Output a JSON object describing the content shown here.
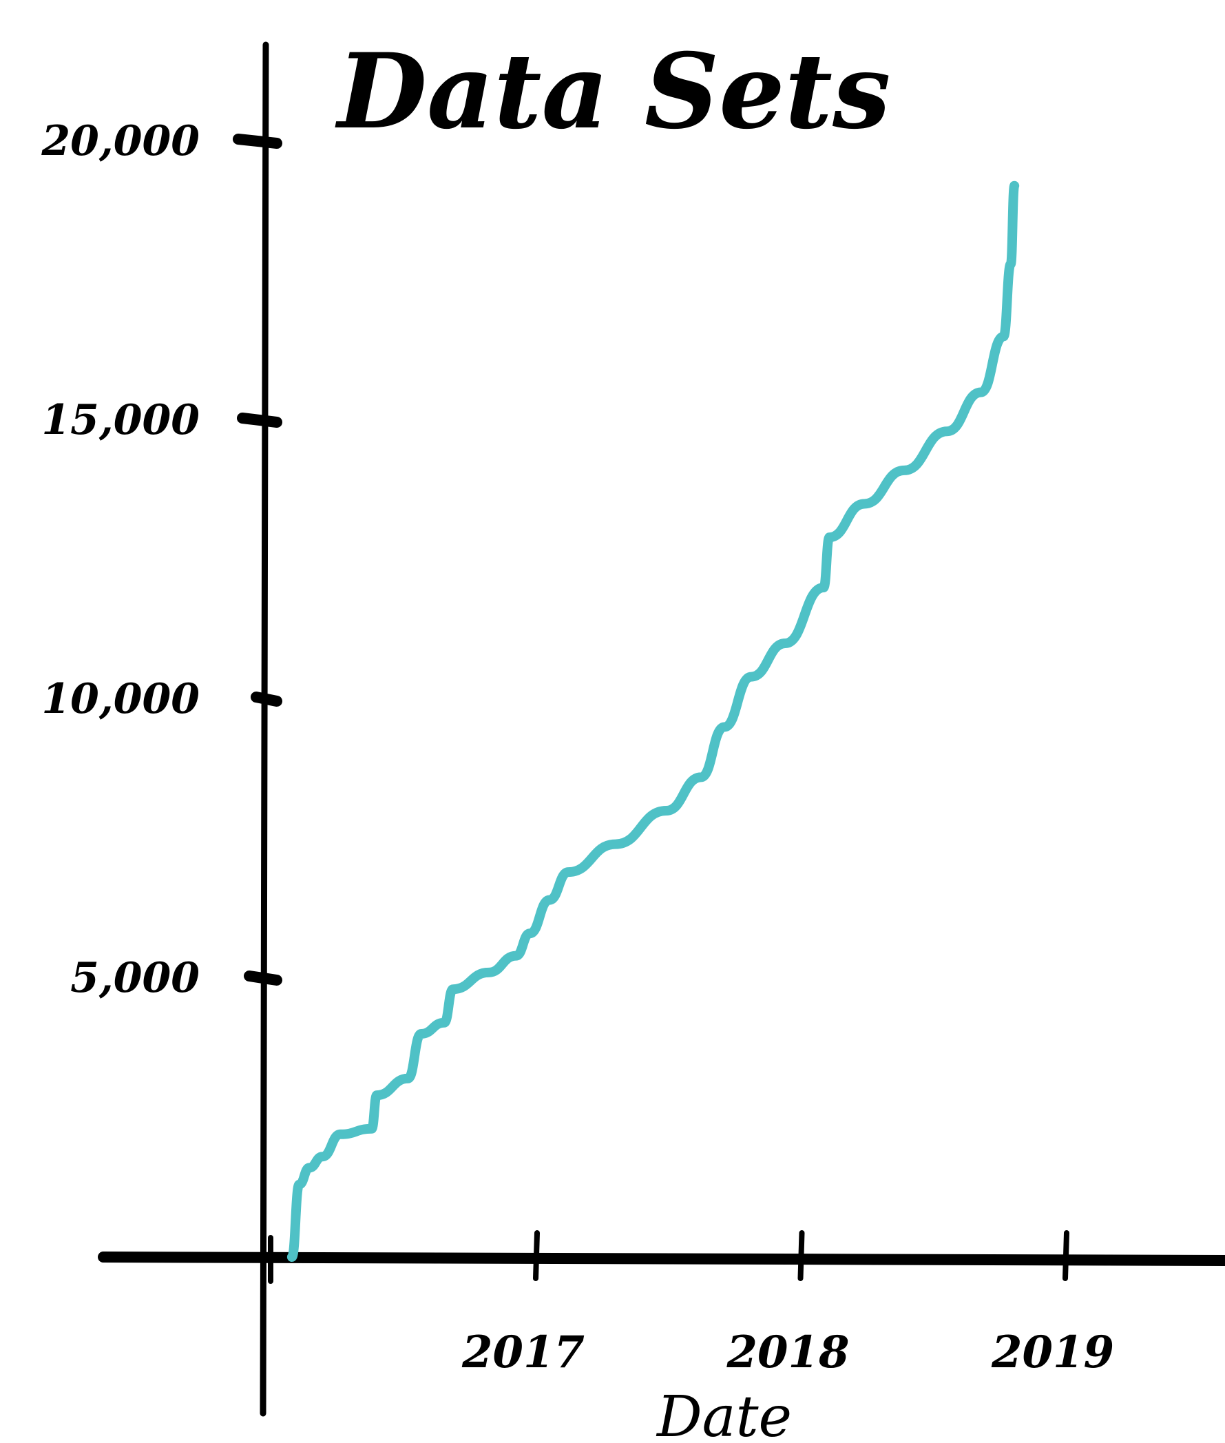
{
  "chart_data": {
    "type": "line",
    "title": "Data Sets",
    "xlabel": "Date",
    "ylabel": "",
    "ylim": [
      0,
      20000
    ],
    "xlim": [
      "2016-01-01",
      "2019-06-01"
    ],
    "y_ticks": [
      {
        "value": 20000,
        "label": "20,000"
      },
      {
        "value": 15000,
        "label": "15,000"
      },
      {
        "value": 10000,
        "label": "10,000"
      },
      {
        "value": 5000,
        "label": "5,000"
      }
    ],
    "x_ticks": [
      {
        "value": "2017-01-01",
        "label": "2017"
      },
      {
        "value": "2018-01-01",
        "label": "2018"
      },
      {
        "value": "2019-01-01",
        "label": "2019"
      }
    ],
    "grid": false,
    "legend": "none",
    "series": [
      {
        "color": "#4fc1c6",
        "points": [
          {
            "x": "2016-01-29",
            "y": 0
          },
          {
            "x": "2016-02-08",
            "y": 1300
          },
          {
            "x": "2016-02-22",
            "y": 1600
          },
          {
            "x": "2016-03-11",
            "y": 1800
          },
          {
            "x": "2016-04-05",
            "y": 2200
          },
          {
            "x": "2016-05-18",
            "y": 2300
          },
          {
            "x": "2016-05-25",
            "y": 2900
          },
          {
            "x": "2016-07-07",
            "y": 3200
          },
          {
            "x": "2016-07-25",
            "y": 4000
          },
          {
            "x": "2016-08-26",
            "y": 4200
          },
          {
            "x": "2016-09-07",
            "y": 4800
          },
          {
            "x": "2016-10-26",
            "y": 5100
          },
          {
            "x": "2016-12-03",
            "y": 5400
          },
          {
            "x": "2016-12-22",
            "y": 5800
          },
          {
            "x": "2017-01-18",
            "y": 6400
          },
          {
            "x": "2017-02-13",
            "y": 6900
          },
          {
            "x": "2017-04-19",
            "y": 7400
          },
          {
            "x": "2017-06-28",
            "y": 8000
          },
          {
            "x": "2017-08-15",
            "y": 8600
          },
          {
            "x": "2017-09-16",
            "y": 9500
          },
          {
            "x": "2017-10-23",
            "y": 10400
          },
          {
            "x": "2017-12-09",
            "y": 11000
          },
          {
            "x": "2018-01-31",
            "y": 12000
          },
          {
            "x": "2018-02-08",
            "y": 12900
          },
          {
            "x": "2018-03-28",
            "y": 13500
          },
          {
            "x": "2018-05-22",
            "y": 14100
          },
          {
            "x": "2018-07-20",
            "y": 14800
          },
          {
            "x": "2018-09-05",
            "y": 15500
          },
          {
            "x": "2018-10-06",
            "y": 16500
          },
          {
            "x": "2018-10-16",
            "y": 17800
          },
          {
            "x": "2018-10-21",
            "y": 19200
          }
        ]
      }
    ]
  }
}
